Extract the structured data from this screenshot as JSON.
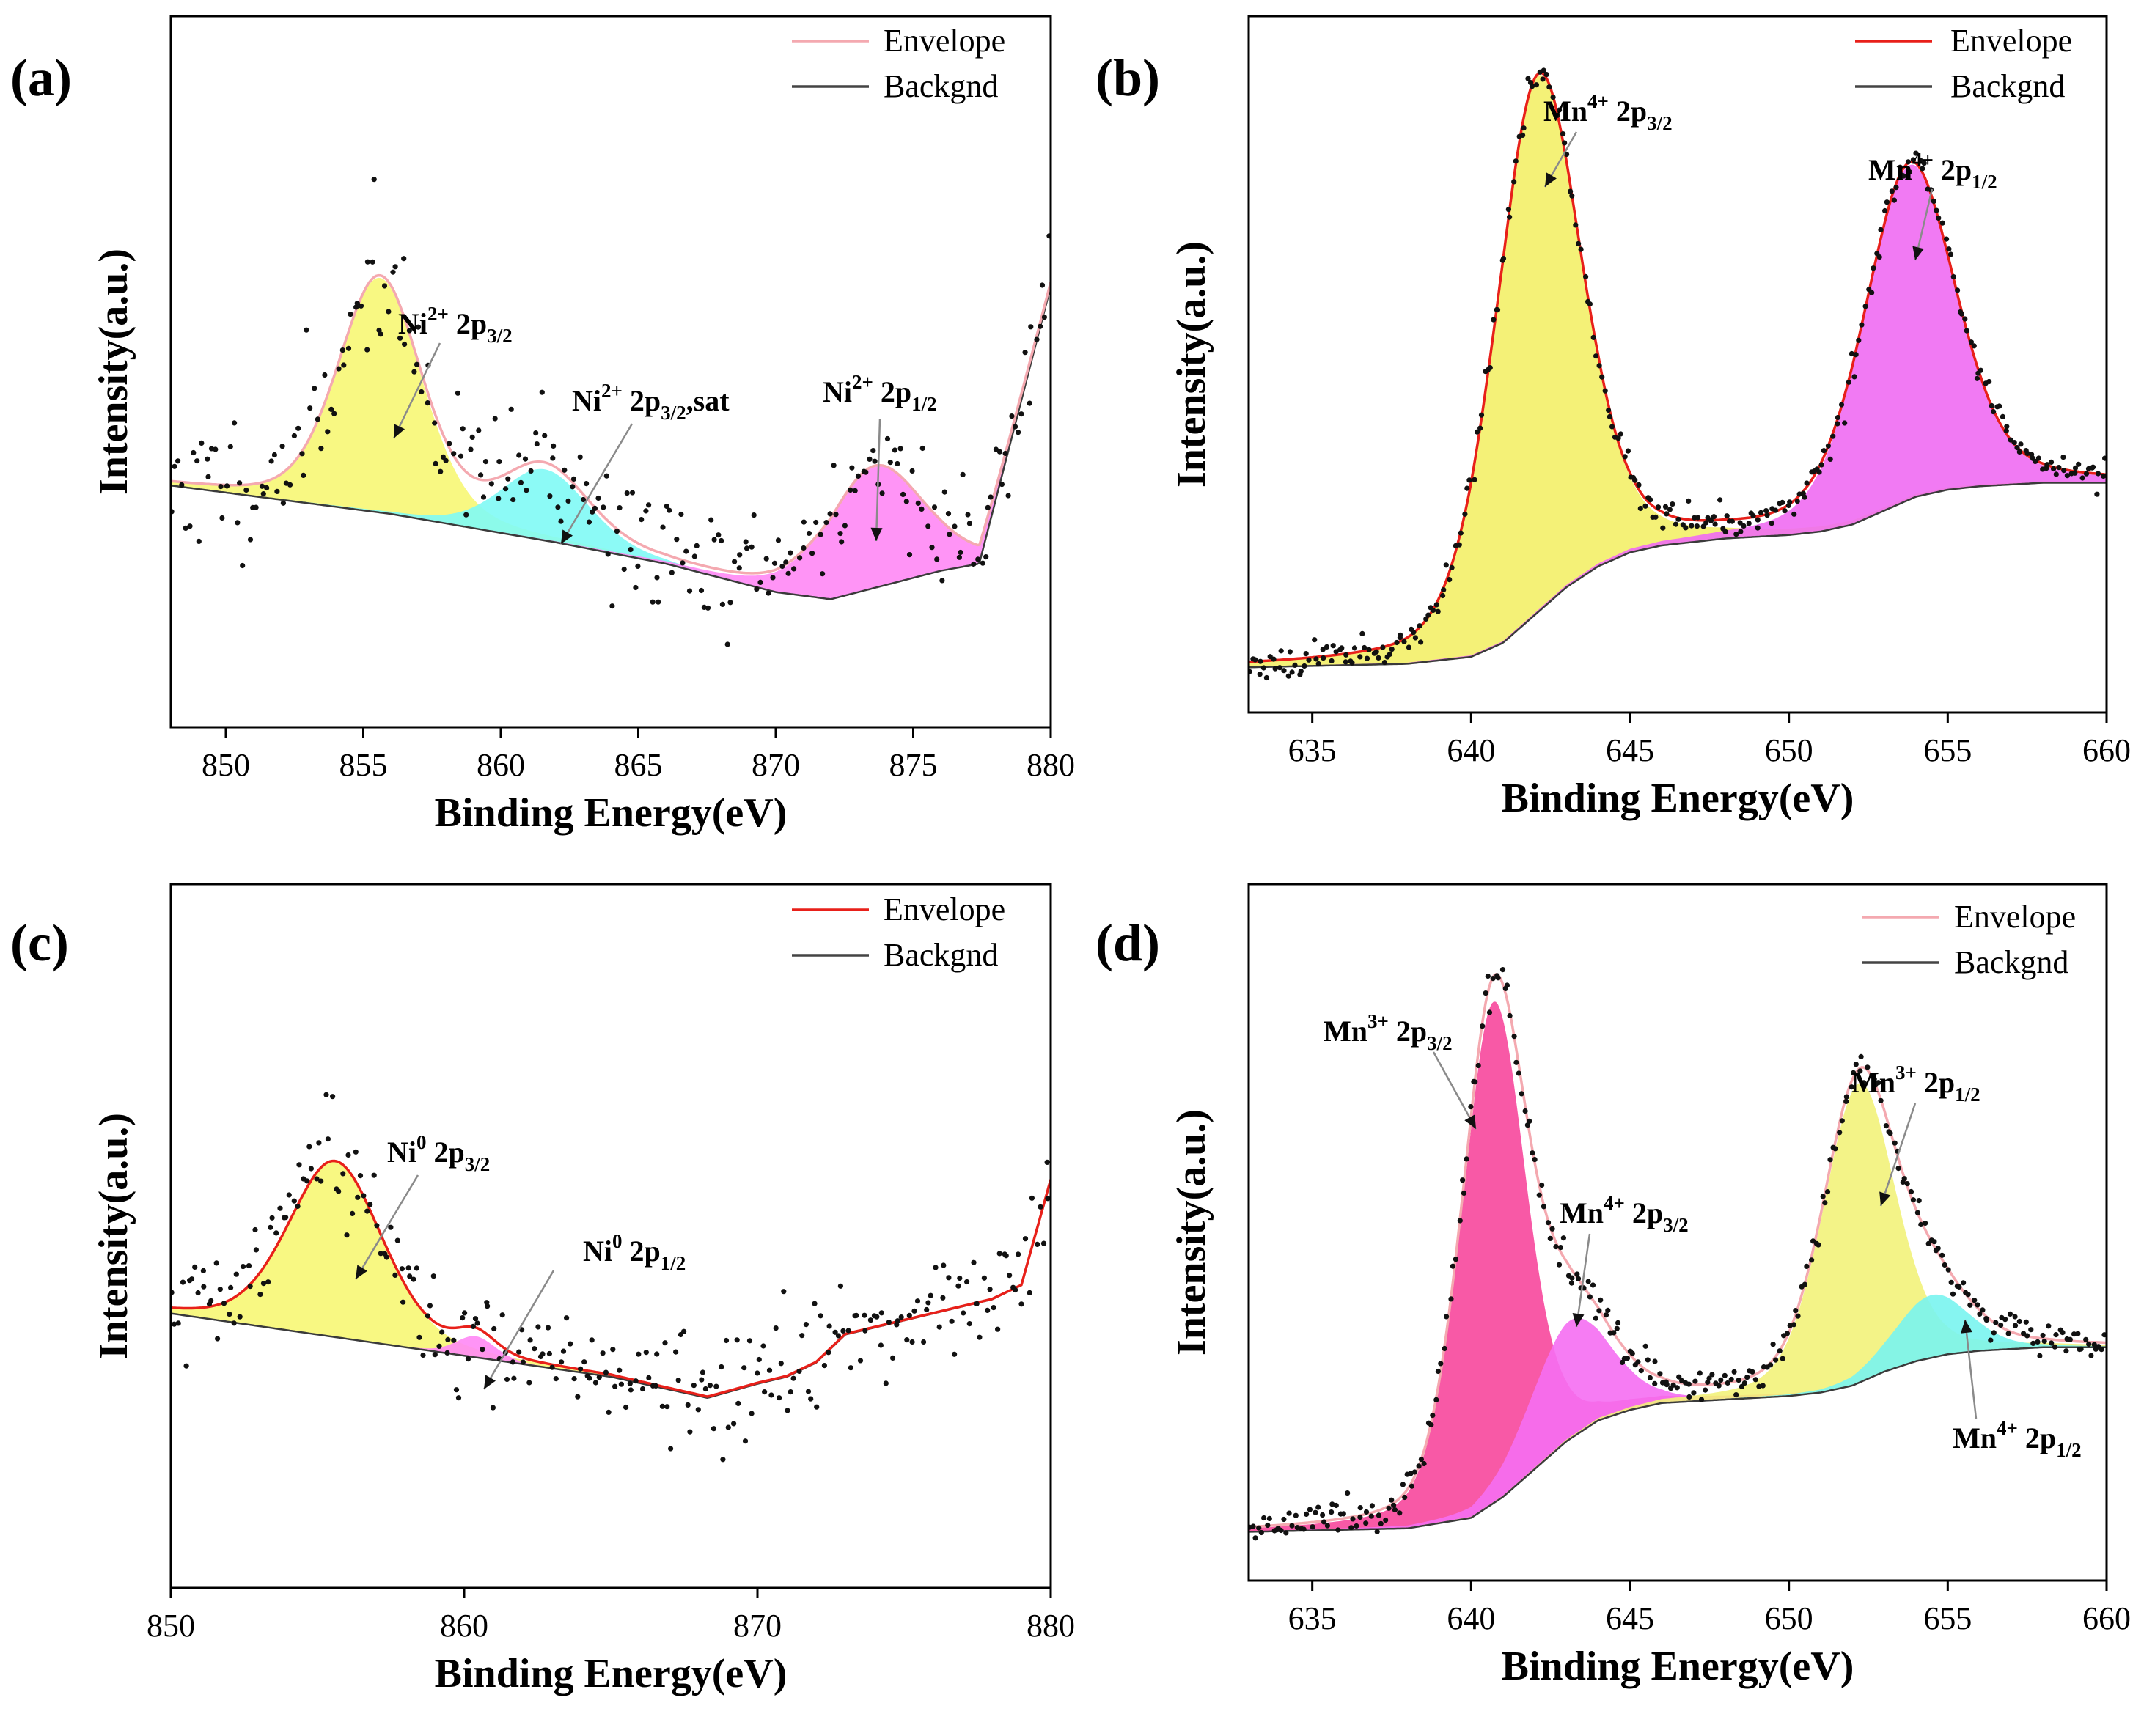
{
  "figure": {
    "panels": [
      {
        "id": "a",
        "label": "(a)"
      },
      {
        "id": "b",
        "label": "(b)"
      },
      {
        "id": "c",
        "label": "(c)"
      },
      {
        "id": "d",
        "label": "(d)"
      }
    ]
  },
  "chart_data": [
    {
      "panel": "(a)",
      "type": "area",
      "title": "",
      "xlabel": "Binding Energy(eV)",
      "ylabel": "Intensity(a.u.)",
      "xlim": [
        848,
        880
      ],
      "ylim": [
        0,
        1
      ],
      "xticks": [
        850,
        855,
        860,
        865,
        870,
        875,
        880
      ],
      "legend": {
        "position": "top-right",
        "entries": [
          {
            "name": "Envelope",
            "color": "#f4a9b0"
          },
          {
            "name": "Backgnd",
            "color": "#444444"
          }
        ]
      },
      "background": {
        "x": [
          848,
          856,
          862,
          866,
          868,
          870,
          872,
          874,
          876,
          877.4,
          878,
          880
        ],
        "y": [
          0.34,
          0.3,
          0.26,
          0.23,
          0.21,
          0.19,
          0.18,
          0.2,
          0.22,
          0.23,
          0.32,
          0.62
        ]
      },
      "components": [
        {
          "name": "Ni2+ 2p3/2",
          "center": 855.6,
          "height": 0.33,
          "fwhm": 3.6,
          "color": "#f7f774"
        },
        {
          "name": "Ni2+ 2p3/2,sat",
          "center": 861.6,
          "height": 0.1,
          "fwhm": 3.8,
          "color": "#7ff9f5"
        },
        {
          "name": "Ni2+ 2p1/2",
          "center": 873.6,
          "height": 0.17,
          "fwhm": 4.2,
          "color": "#ff88f5"
        }
      ],
      "envelope_color": "#f4a9b0",
      "annotations": [
        {
          "main": "Ni",
          "sup": "2+",
          "rest": " 2p",
          "sub": "3/2",
          "tail": ""
        },
        {
          "main": "Ni",
          "sup": "2+",
          "rest": " 2p",
          "sub": "3/2",
          "tail": ",sat"
        },
        {
          "main": "Ni",
          "sup": "2+",
          "rest": " 2p",
          "sub": "1/2",
          "tail": ""
        }
      ]
    },
    {
      "panel": "(b)",
      "type": "area",
      "title": "",
      "xlabel": "Binding Energy(eV)",
      "ylabel": "Intensity(a.u.)",
      "xlim": [
        633,
        660
      ],
      "ylim": [
        0,
        1
      ],
      "xticks": [
        635,
        640,
        645,
        650,
        655,
        660
      ],
      "legend": {
        "position": "top-right",
        "entries": [
          {
            "name": "Envelope",
            "color": "#e8201a"
          },
          {
            "name": "Backgnd",
            "color": "#444444"
          }
        ]
      },
      "background": {
        "x": [
          633,
          638,
          640,
          641,
          642,
          643,
          644,
          645,
          646,
          648,
          650,
          651,
          652,
          653,
          654,
          655,
          656,
          658,
          660
        ],
        "y": [
          0.065,
          0.07,
          0.08,
          0.1,
          0.14,
          0.18,
          0.21,
          0.23,
          0.24,
          0.25,
          0.255,
          0.26,
          0.27,
          0.29,
          0.31,
          0.32,
          0.325,
          0.33,
          0.33
        ]
      },
      "components": [
        {
          "name": "Mn4+ 2p3/2",
          "center": 642.1,
          "height": 0.77,
          "fwhm": 3.2,
          "color": "#f3f068"
        },
        {
          "name": "Mn4+ 2p1/2",
          "center": 653.8,
          "height": 0.48,
          "fwhm": 3.4,
          "color": "#f06cf2"
        }
      ],
      "envelope_color": "#e8201a",
      "annotations": [
        {
          "main": "Mn",
          "sup": "4+",
          "rest": " 2p",
          "sub": "3/2",
          "tail": ""
        },
        {
          "main": "Mn",
          "sup": "4+",
          "rest": " 2p",
          "sub": "1/2",
          "tail": ""
        }
      ]
    },
    {
      "panel": "(c)",
      "type": "area",
      "title": "",
      "xlabel": "Binding Energy(eV)",
      "ylabel": "Intensity(a.u.)",
      "xlim": [
        850,
        880
      ],
      "ylim": [
        0,
        1
      ],
      "xticks": [
        850,
        860,
        870,
        880
      ],
      "legend": {
        "position": "top-right",
        "entries": [
          {
            "name": "Envelope",
            "color": "#e8201a"
          },
          {
            "name": "Backgnd",
            "color": "#444444"
          }
        ]
      },
      "background": {
        "x": [
          850,
          855,
          860,
          865,
          868.3,
          870,
          871,
          872,
          873,
          874,
          876,
          878,
          879,
          880
        ],
        "y": [
          0.39,
          0.36,
          0.33,
          0.3,
          0.27,
          0.29,
          0.3,
          0.32,
          0.36,
          0.37,
          0.39,
          0.41,
          0.43,
          0.58
        ]
      },
      "components": [
        {
          "name": "Ni0 2p3/2",
          "center": 855.6,
          "height": 0.25,
          "fwhm": 3.8,
          "color": "#f7f774"
        },
        {
          "name": "Ni0 2p1/2",
          "center": 860.4,
          "height": 0.03,
          "fwhm": 1.6,
          "color": "#ff88f5"
        }
      ],
      "envelope_color": "#e8201a",
      "annotations": [
        {
          "main": "Ni",
          "sup": "0",
          "rest": " 2p",
          "sub": "3/2",
          "tail": ""
        },
        {
          "main": "Ni",
          "sup": "0",
          "rest": " 2p",
          "sub": "1/2",
          "tail": ""
        }
      ]
    },
    {
      "panel": "(d)",
      "type": "area",
      "title": "",
      "xlabel": "Binding Energy(eV)",
      "ylabel": "Intensity(a.u.)",
      "xlim": [
        633,
        660
      ],
      "ylim": [
        0,
        1
      ],
      "xticks": [
        635,
        640,
        645,
        650,
        655,
        660
      ],
      "legend": {
        "position": "top-right",
        "entries": [
          {
            "name": "Envelope",
            "color": "#f4a9b0"
          },
          {
            "name": "Backgnd",
            "color": "#444444"
          }
        ]
      },
      "background": {
        "x": [
          633,
          638,
          640,
          641,
          642,
          643,
          644,
          645,
          646,
          648,
          650,
          651,
          652,
          653,
          654,
          655,
          656,
          658,
          660
        ],
        "y": [
          0.07,
          0.075,
          0.09,
          0.12,
          0.16,
          0.2,
          0.23,
          0.245,
          0.255,
          0.26,
          0.265,
          0.27,
          0.28,
          0.3,
          0.315,
          0.325,
          0.33,
          0.335,
          0.335
        ]
      },
      "components": [
        {
          "name": "Mn3+ 2p3/2",
          "center": 640.7,
          "height": 0.72,
          "fwhm": 2.4,
          "color": "#f7479c"
        },
        {
          "name": "Mn4+ 2p3/2",
          "center": 643.1,
          "height": 0.17,
          "fwhm": 3.0,
          "color": "#f56ef2"
        },
        {
          "name": "Mn3+ 2p1/2",
          "center": 652.2,
          "height": 0.43,
          "fwhm": 2.7,
          "color": "#f2f27a"
        },
        {
          "name": "Mn4+ 2p1/2",
          "center": 654.5,
          "height": 0.09,
          "fwhm": 2.8,
          "color": "#79f4ef"
        }
      ],
      "envelope_color": "#f4a9b0",
      "annotations": [
        {
          "main": "Mn",
          "sup": "3+",
          "rest": " 2p",
          "sub": "3/2",
          "tail": ""
        },
        {
          "main": "Mn",
          "sup": "4+",
          "rest": " 2p",
          "sub": "3/2",
          "tail": ""
        },
        {
          "main": "Mn",
          "sup": "3+",
          "rest": " 2p",
          "sub": "1/2",
          "tail": ""
        },
        {
          "main": "Mn",
          "sup": "4+",
          "rest": " 2p",
          "sub": "1/2",
          "tail": ""
        }
      ]
    }
  ]
}
